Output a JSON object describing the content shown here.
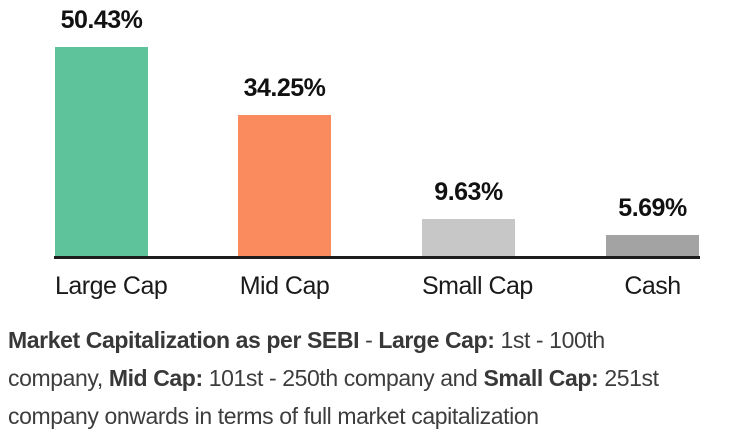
{
  "chart_data": {
    "type": "bar",
    "categories": [
      "Large Cap",
      "Mid Cap",
      "Small Cap",
      "Cash"
    ],
    "values": [
      50.43,
      34.25,
      9.63,
      5.69
    ],
    "value_labels": [
      "50.43%",
      "34.25%",
      "9.63%",
      "5.69%"
    ],
    "bar_colors": [
      "#5EC39B",
      "#F98B5E",
      "#C7C7C7",
      "#A3A3A3"
    ],
    "ylim": [
      0,
      55
    ],
    "grid": false,
    "legend": false,
    "axis_line_color": "#1c1c1c",
    "background_color": "#ffffff",
    "label_color": "#111111"
  },
  "footnote": {
    "lines": [
      {
        "segments": [
          {
            "text": "Market Capitalization as per SEBI",
            "bold": true
          },
          {
            "text": " - ",
            "bold": false
          },
          {
            "text": "Large Cap:",
            "bold": true
          },
          {
            "text": " 1st - 100th",
            "bold": false
          }
        ]
      },
      {
        "segments": [
          {
            "text": "company, ",
            "bold": false
          },
          {
            "text": "Mid Cap:",
            "bold": true
          },
          {
            "text": " 101st - 250th company and ",
            "bold": false
          },
          {
            "text": "Small Cap:",
            "bold": true
          },
          {
            "text": " 251st",
            "bold": false
          }
        ]
      },
      {
        "segments": [
          {
            "text": "company onwards in terms of full market capitalization",
            "bold": false
          }
        ]
      }
    ]
  }
}
